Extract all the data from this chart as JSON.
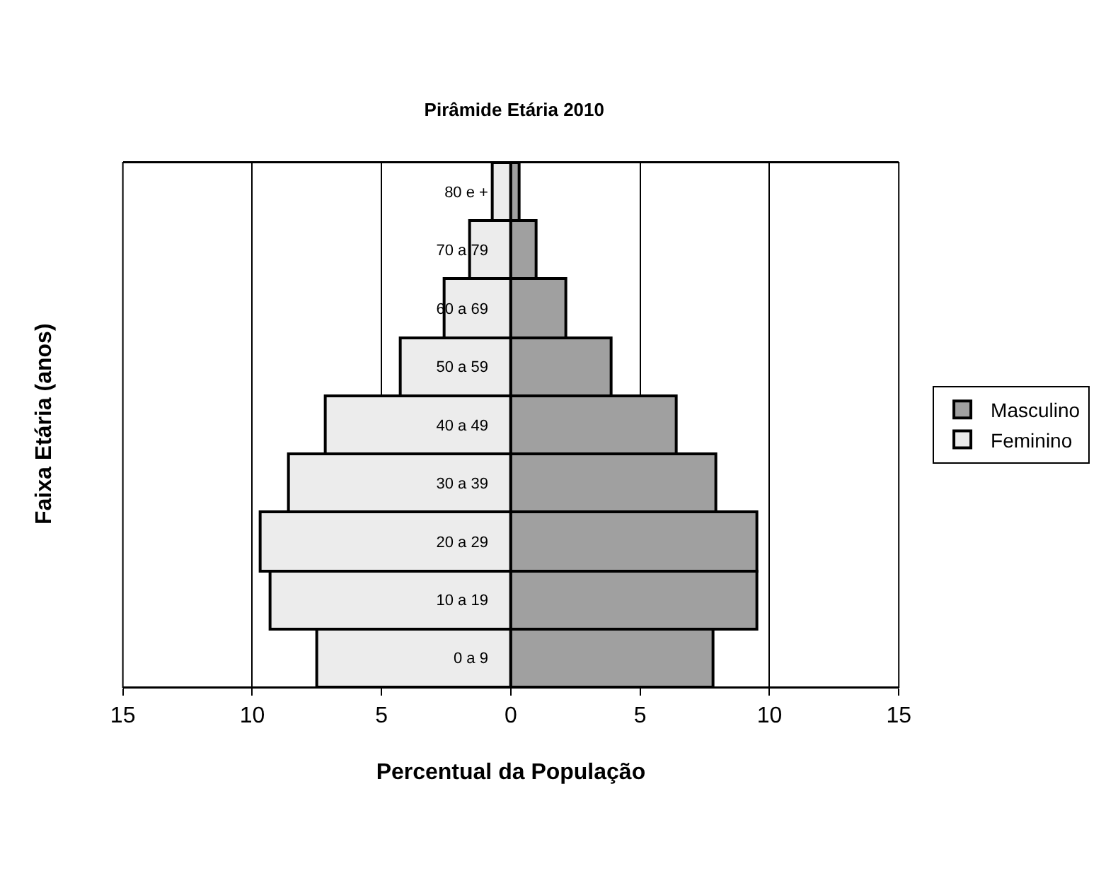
{
  "chart_data": {
    "type": "bar",
    "orientation": "horizontal",
    "stacked": true,
    "title": "Pirâmide Etária 2010",
    "xlabel": "Percentual da População",
    "ylabel": "Faixa Etária (anos)",
    "categories": [
      "80 e +",
      "70 a 79",
      "60 a 69",
      "50 a 59",
      "40 a 49",
      "30 a 39",
      "20 a 29",
      "10 a 19",
      "0 a 9"
    ],
    "series": [
      {
        "name": "Masculino",
        "color": "#a0a0a0",
        "values": [
          0.3,
          1.0,
          2.1,
          3.9,
          6.4,
          7.9,
          9.5,
          9.5,
          7.8
        ]
      },
      {
        "name": "Feminino",
        "color": "#ececec",
        "values": [
          -0.7,
          -1.6,
          -2.6,
          -4.3,
          -7.2,
          -8.6,
          -9.7,
          -9.3,
          -7.5
        ]
      }
    ],
    "xlim": [
      -15,
      15
    ],
    "xticks": [
      {
        "value": -15,
        "label": "15"
      },
      {
        "value": -10,
        "label": "10"
      },
      {
        "value": -5,
        "label": "5"
      },
      0,
      5,
      10,
      15
    ],
    "grid": "x",
    "legend": "right"
  }
}
